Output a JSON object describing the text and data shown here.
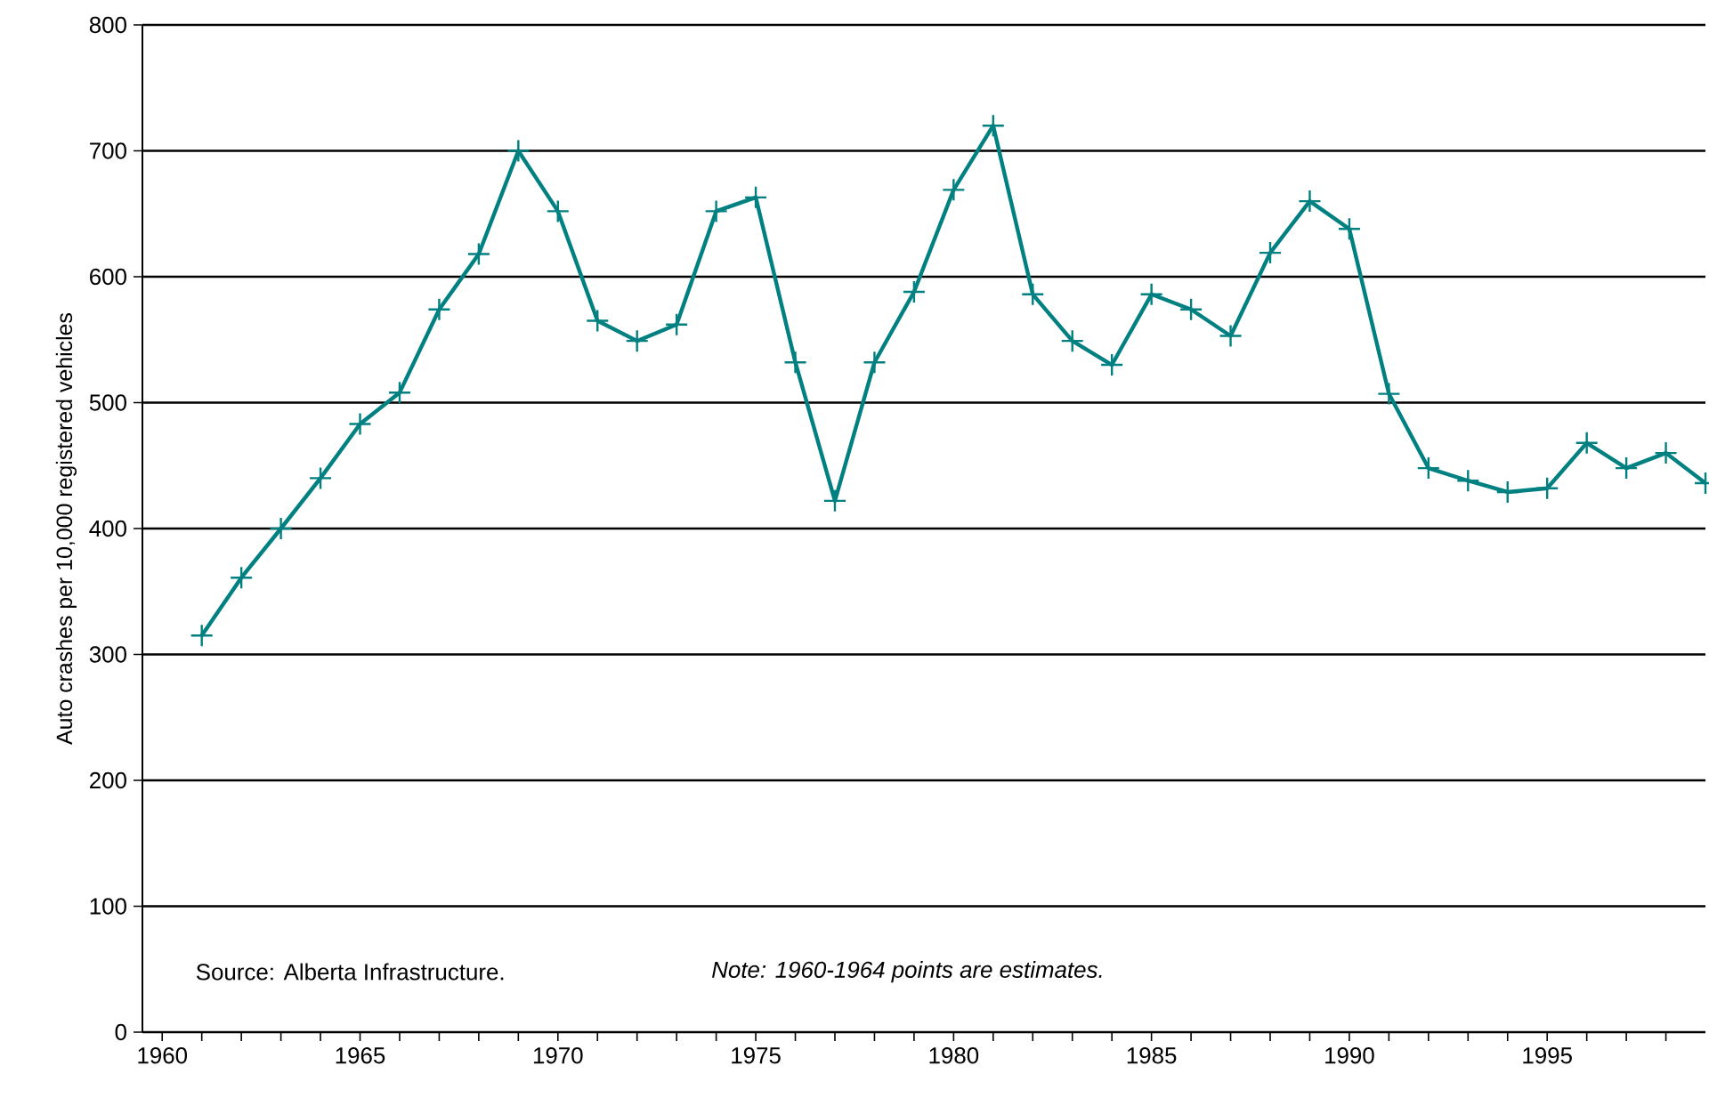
{
  "chart_data": {
    "type": "line",
    "ylabel": "Auto crashes per 10,000 registered vehicles",
    "x": [
      1961,
      1962,
      1963,
      1964,
      1965,
      1966,
      1967,
      1968,
      1969,
      1970,
      1971,
      1972,
      1973,
      1974,
      1975,
      1976,
      1977,
      1978,
      1979,
      1980,
      1981,
      1982,
      1983,
      1984,
      1985,
      1986,
      1987,
      1988,
      1989,
      1990,
      1991,
      1992,
      1993,
      1994,
      1995,
      1996,
      1997,
      1998,
      1999
    ],
    "series": [
      {
        "color": "#008080",
        "values": [
          315,
          361,
          400,
          440,
          483,
          508,
          574,
          618,
          700,
          652,
          565,
          549,
          562,
          652,
          663,
          532,
          422,
          532,
          588,
          669,
          720,
          586,
          549,
          530,
          586,
          574,
          553,
          619,
          660,
          638,
          507,
          448,
          438,
          429,
          432,
          468,
          448,
          460,
          436
        ]
      }
    ],
    "xlim": [
      1959.5,
      1999
    ],
    "xticks": [
      1960,
      {
        "value": 1961,
        "label": null
      },
      {
        "value": 1962,
        "label": null
      },
      {
        "value": 1963,
        "label": null
      },
      {
        "value": 1964,
        "label": null
      },
      1965,
      {
        "value": 1966,
        "label": null
      },
      {
        "value": 1967,
        "label": null
      },
      {
        "value": 1968,
        "label": null
      },
      {
        "value": 1969,
        "label": null
      },
      1970,
      {
        "value": 1971,
        "label": null
      },
      {
        "value": 1972,
        "label": null
      },
      {
        "value": 1973,
        "label": null
      },
      {
        "value": 1974,
        "label": null
      },
      1975,
      {
        "value": 1976,
        "label": null
      },
      {
        "value": 1977,
        "label": null
      },
      {
        "value": 1978,
        "label": null
      },
      {
        "value": 1979,
        "label": null
      },
      1980,
      {
        "value": 1981,
        "label": null
      },
      {
        "value": 1982,
        "label": null
      },
      {
        "value": 1983,
        "label": null
      },
      {
        "value": 1984,
        "label": null
      },
      1985,
      {
        "value": 1986,
        "label": null
      },
      {
        "value": 1987,
        "label": null
      },
      {
        "value": 1988,
        "label": null
      },
      {
        "value": 1989,
        "label": null
      },
      1990,
      {
        "value": 1991,
        "label": null
      },
      {
        "value": 1992,
        "label": null
      },
      {
        "value": 1993,
        "label": null
      },
      {
        "value": 1994,
        "label": null
      },
      1995,
      {
        "value": 1996,
        "label": null
      },
      {
        "value": 1997,
        "label": null
      },
      {
        "value": 1998,
        "label": null
      }
    ],
    "ylim": [
      0,
      800
    ],
    "yticks": [
      0,
      100,
      200,
      300,
      400,
      500,
      600,
      700,
      800
    ],
    "grid": "y",
    "marker": "cross",
    "line_style": "solid",
    "annotations": [
      "Source: Alberta Infrastructure.",
      "Note: 1960-1964 points are estimates."
    ]
  }
}
